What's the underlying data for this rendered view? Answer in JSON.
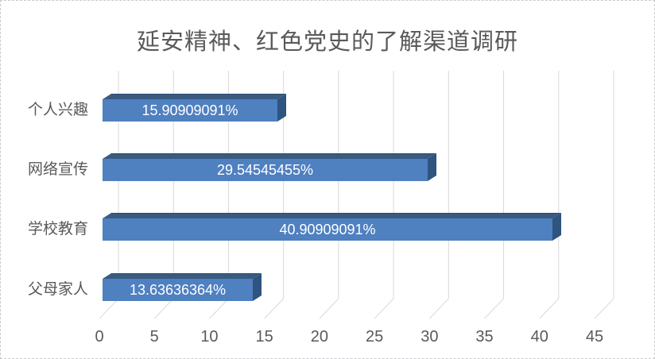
{
  "canvas": {
    "background": "#ffffff",
    "border_color": "#cbcbcf",
    "border_style": "dashed"
  },
  "chart_data": {
    "type": "bar",
    "orientation": "horizontal",
    "style": "3d",
    "title": "延安精神、红色党史的了解渠道调研",
    "categories": [
      "个人兴趣",
      "网络宣传",
      "学校教育",
      "父母家人"
    ],
    "values": [
      15.90909091,
      29.54545455,
      40.90909091,
      13.63636364
    ],
    "data_labels": [
      "15.90909091%",
      "29.54545455%",
      "40.90909091%",
      "13.63636364%"
    ],
    "x_ticks": [
      0,
      5,
      10,
      15,
      20,
      25,
      30,
      35,
      40,
      45
    ],
    "xlim": [
      0,
      45
    ],
    "grid": true,
    "legend": false,
    "colors": {
      "bar_face": "#4F80C0",
      "bar_top": "#395B80",
      "bar_top_edge": "#2C4A6B",
      "bar_side": "#2E5480",
      "gridline": "#D9D9D9",
      "text": "#595959",
      "data_label_text": "#FFFFFF"
    }
  }
}
